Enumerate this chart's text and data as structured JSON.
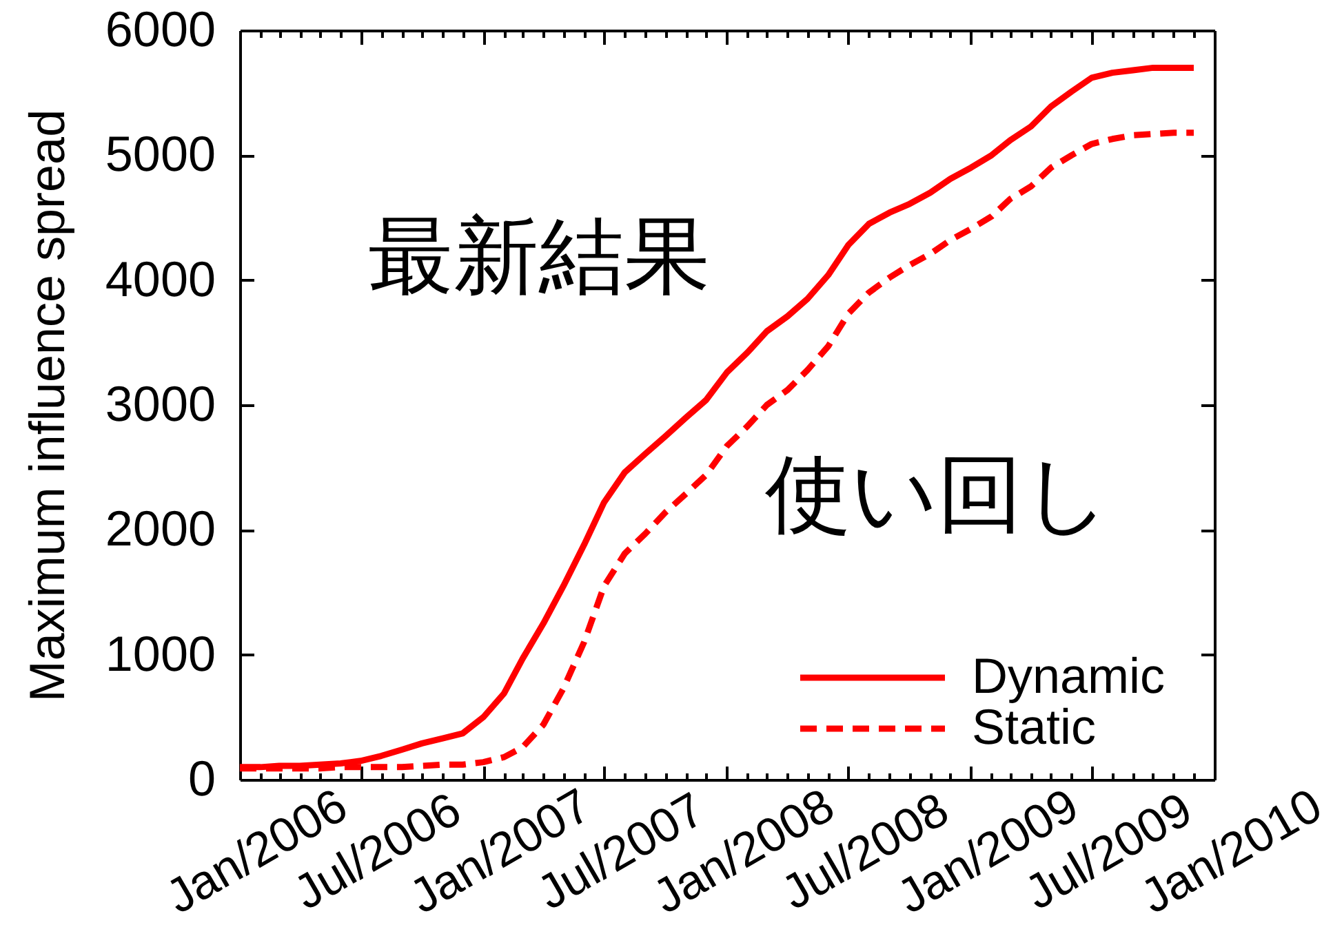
{
  "chart_data": {
    "type": "line",
    "ylabel": "Maximum influence spread",
    "x": [
      "2006-01",
      "2006-02",
      "2006-03",
      "2006-04",
      "2006-05",
      "2006-06",
      "2006-07",
      "2006-08",
      "2006-09",
      "2006-10",
      "2006-11",
      "2006-12",
      "2007-01",
      "2007-02",
      "2007-03",
      "2007-04",
      "2007-05",
      "2007-06",
      "2007-07",
      "2007-08",
      "2007-09",
      "2007-10",
      "2007-11",
      "2007-12",
      "2008-01",
      "2008-02",
      "2008-03",
      "2008-04",
      "2008-05",
      "2008-06",
      "2008-07",
      "2008-08",
      "2008-09",
      "2008-10",
      "2008-11",
      "2008-12",
      "2009-01",
      "2009-02",
      "2009-03",
      "2009-04",
      "2009-05",
      "2009-06",
      "2009-07",
      "2009-08",
      "2009-09",
      "2009-10",
      "2009-11",
      "2009-12"
    ],
    "series": [
      {
        "name": "Dynamic",
        "color": "#ff0000",
        "line_style": "solid",
        "values": [
          100,
          100,
          110,
          110,
          120,
          130,
          150,
          190,
          240,
          290,
          330,
          370,
          500,
          690,
          970,
          1250,
          1550,
          1880,
          2220,
          2460,
          2610,
          2750,
          2900,
          3040,
          3260,
          3420,
          3590,
          3710,
          3850,
          4040,
          4280,
          4450,
          4540,
          4610,
          4700,
          4810,
          4900,
          5000,
          5120,
          5230,
          5390,
          5510,
          5620,
          5660,
          5680,
          5700,
          5700,
          5700
        ]
      },
      {
        "name": "Static",
        "color": "#ff0000",
        "line_style": "dashed",
        "values": [
          90,
          90,
          90,
          90,
          90,
          100,
          100,
          100,
          100,
          110,
          120,
          120,
          140,
          180,
          260,
          440,
          730,
          1100,
          1550,
          1810,
          1970,
          2140,
          2290,
          2440,
          2670,
          2830,
          3000,
          3120,
          3280,
          3470,
          3730,
          3900,
          4020,
          4120,
          4210,
          4320,
          4410,
          4510,
          4650,
          4750,
          4900,
          5000,
          5090,
          5130,
          5160,
          5170,
          5180,
          5180
        ]
      }
    ],
    "xlim": [
      "2006-01",
      "2010-01"
    ],
    "xticks": [
      {
        "value": "2006-01",
        "label": "Jan/2006"
      },
      {
        "value": "2006-02",
        "label": null
      },
      {
        "value": "2006-03",
        "label": null
      },
      {
        "value": "2006-04",
        "label": null
      },
      {
        "value": "2006-05",
        "label": null
      },
      {
        "value": "2006-06",
        "label": null
      },
      {
        "value": "2006-07",
        "label": "Jul/2006"
      },
      {
        "value": "2006-08",
        "label": null
      },
      {
        "value": "2006-09",
        "label": null
      },
      {
        "value": "2006-10",
        "label": null
      },
      {
        "value": "2006-11",
        "label": null
      },
      {
        "value": "2006-12",
        "label": null
      },
      {
        "value": "2007-01",
        "label": "Jan/2007"
      },
      {
        "value": "2007-02",
        "label": null
      },
      {
        "value": "2007-03",
        "label": null
      },
      {
        "value": "2007-04",
        "label": null
      },
      {
        "value": "2007-05",
        "label": null
      },
      {
        "value": "2007-06",
        "label": null
      },
      {
        "value": "2007-07",
        "label": "Jul/2007"
      },
      {
        "value": "2007-08",
        "label": null
      },
      {
        "value": "2007-09",
        "label": null
      },
      {
        "value": "2007-10",
        "label": null
      },
      {
        "value": "2007-11",
        "label": null
      },
      {
        "value": "2007-12",
        "label": null
      },
      {
        "value": "2008-01",
        "label": "Jan/2008"
      },
      {
        "value": "2008-02",
        "label": null
      },
      {
        "value": "2008-03",
        "label": null
      },
      {
        "value": "2008-04",
        "label": null
      },
      {
        "value": "2008-05",
        "label": null
      },
      {
        "value": "2008-06",
        "label": null
      },
      {
        "value": "2008-07",
        "label": "Jul/2008"
      },
      {
        "value": "2008-08",
        "label": null
      },
      {
        "value": "2008-09",
        "label": null
      },
      {
        "value": "2008-10",
        "label": null
      },
      {
        "value": "2008-11",
        "label": null
      },
      {
        "value": "2008-12",
        "label": null
      },
      {
        "value": "2009-01",
        "label": "Jan/2009"
      },
      {
        "value": "2009-02",
        "label": null
      },
      {
        "value": "2009-03",
        "label": null
      },
      {
        "value": "2009-04",
        "label": null
      },
      {
        "value": "2009-05",
        "label": null
      },
      {
        "value": "2009-06",
        "label": null
      },
      {
        "value": "2009-07",
        "label": "Jul/2009"
      },
      {
        "value": "2009-08",
        "label": null
      },
      {
        "value": "2009-09",
        "label": null
      },
      {
        "value": "2009-10",
        "label": null
      },
      {
        "value": "2009-11",
        "label": null
      },
      {
        "value": "2009-12",
        "label": null
      },
      {
        "value": "2010-01",
        "label": "Jan/2010"
      }
    ],
    "ylim": [
      0,
      6000
    ],
    "yticks": [
      0,
      1000,
      2000,
      3000,
      4000,
      5000,
      6000
    ],
    "grid": false,
    "legend": "bottom right",
    "annotations": [
      "最新結果",
      "使い回し"
    ]
  }
}
